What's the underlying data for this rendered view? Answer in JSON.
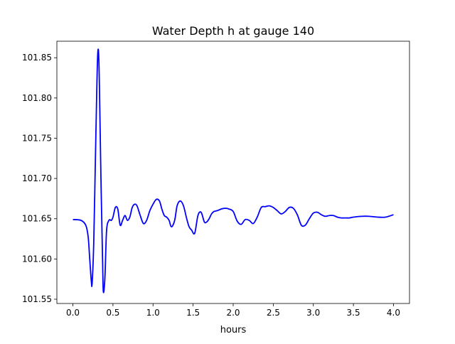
{
  "chart_data": {
    "type": "line",
    "title": "Water Depth h at gauge 140",
    "xlabel": "hours",
    "ylabel": "",
    "xlim": [
      -0.2,
      4.2
    ],
    "ylim": [
      101.5447,
      101.8705
    ],
    "x_ticks": [
      0.0,
      0.5,
      1.0,
      1.5,
      2.0,
      2.5,
      3.0,
      3.5,
      4.0
    ],
    "x_tick_labels": [
      "0.0",
      "0.5",
      "1.0",
      "1.5",
      "2.0",
      "2.5",
      "3.0",
      "3.5",
      "4.0"
    ],
    "y_ticks": [
      101.55,
      101.6,
      101.65,
      101.7,
      101.75,
      101.8,
      101.85
    ],
    "y_tick_labels": [
      "101.55",
      "101.60",
      "101.65",
      "101.70",
      "101.75",
      "101.80",
      "101.85"
    ],
    "grid": false,
    "legend": "none",
    "series": [
      {
        "name": "",
        "color": "#0000ff",
        "x": [
          0.0,
          0.1,
          0.16,
          0.19,
          0.21,
          0.23,
          0.24,
          0.26,
          0.28,
          0.3,
          0.31,
          0.32,
          0.33,
          0.35,
          0.37,
          0.38,
          0.4,
          0.42,
          0.45,
          0.48,
          0.5,
          0.53,
          0.56,
          0.59,
          0.62,
          0.65,
          0.68,
          0.71,
          0.74,
          0.77,
          0.8,
          0.84,
          0.88,
          0.92,
          0.96,
          1.0,
          1.04,
          1.08,
          1.11,
          1.14,
          1.17,
          1.2,
          1.23,
          1.27,
          1.3,
          1.34,
          1.38,
          1.42,
          1.45,
          1.48,
          1.52,
          1.56,
          1.6,
          1.64,
          1.67,
          1.7,
          1.73,
          1.76,
          1.8,
          1.85,
          1.9,
          1.95,
          2.0,
          2.05,
          2.1,
          2.15,
          2.2,
          2.25,
          2.3,
          2.35,
          2.4,
          2.45,
          2.5,
          2.55,
          2.6,
          2.65,
          2.7,
          2.75,
          2.8,
          2.85,
          2.9,
          2.95,
          3.0,
          3.05,
          3.1,
          3.15,
          3.2,
          3.25,
          3.3,
          3.35,
          3.4,
          3.45,
          3.5,
          3.6,
          3.7,
          3.8,
          3.9,
          4.0
        ],
        "y": [
          101.649,
          101.648,
          101.642,
          101.628,
          101.6,
          101.572,
          101.57,
          101.62,
          101.72,
          101.82,
          101.855,
          101.857,
          101.82,
          101.7,
          101.6,
          101.559,
          101.578,
          101.635,
          101.648,
          101.648,
          101.652,
          101.664,
          101.662,
          101.642,
          101.648,
          101.654,
          101.648,
          101.652,
          101.664,
          101.668,
          101.666,
          101.654,
          101.644,
          101.648,
          101.66,
          101.668,
          101.674,
          101.672,
          101.662,
          101.654,
          101.652,
          101.648,
          101.64,
          101.648,
          101.666,
          101.672,
          101.666,
          101.65,
          101.64,
          101.636,
          101.632,
          101.654,
          101.658,
          101.646,
          101.646,
          101.65,
          101.656,
          101.659,
          101.66,
          101.662,
          101.663,
          101.662,
          101.659,
          101.647,
          101.643,
          101.649,
          101.648,
          101.644,
          101.652,
          101.664,
          101.665,
          101.666,
          101.664,
          101.66,
          101.656,
          101.659,
          101.664,
          101.663,
          101.655,
          101.642,
          101.642,
          101.65,
          101.657,
          101.658,
          101.655,
          101.653,
          101.654,
          101.654,
          101.652,
          101.651,
          101.651,
          101.651,
          101.652,
          101.653,
          101.653,
          101.652,
          101.652,
          101.655
        ]
      }
    ]
  }
}
